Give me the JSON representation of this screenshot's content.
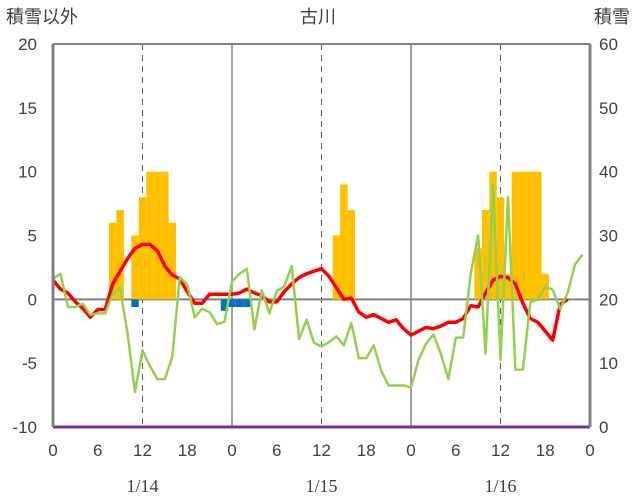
{
  "chart_data": {
    "type": "bar+line",
    "title": "古川",
    "y_left_label": "積雪以外",
    "y_right_label": "積雪",
    "y_left_range": [
      -10,
      20
    ],
    "y_right_range": [
      0,
      60
    ],
    "y_left_ticks": [
      "-10",
      "-5",
      "0",
      "5",
      "10",
      "15",
      "20"
    ],
    "y_right_ticks": [
      "0",
      "10",
      "20",
      "30",
      "40",
      "50",
      "60"
    ],
    "x_hours_range": [
      0,
      72
    ],
    "x_tick_labels": [
      "0",
      "6",
      "12",
      "18",
      "0",
      "6",
      "12",
      "18",
      "0",
      "6",
      "12",
      "18",
      "0"
    ],
    "date_labels": [
      "1/14",
      "1/15",
      "1/16"
    ],
    "colors": {
      "snowfall": "#ffc000",
      "precip": "#0070c0",
      "temperature": "#ff0000",
      "other_line": "#92d050",
      "snow_depth": "#7030a0",
      "axis": "#808080"
    },
    "series": [
      {
        "key": "snowfall_bars",
        "axis": "left",
        "render": "bar",
        "values": [
          [
            8,
            6
          ],
          [
            9,
            7
          ],
          [
            11,
            5
          ],
          [
            12,
            8
          ],
          [
            13,
            10
          ],
          [
            14,
            10
          ],
          [
            15,
            10
          ],
          [
            16,
            6
          ],
          [
            38,
            5
          ],
          [
            39,
            9
          ],
          [
            40,
            7
          ],
          [
            57,
            4
          ],
          [
            58,
            7
          ],
          [
            59,
            10
          ],
          [
            60,
            8
          ],
          [
            61,
            2
          ],
          [
            62,
            10
          ],
          [
            63,
            10
          ],
          [
            64,
            10
          ],
          [
            65,
            10
          ],
          [
            66,
            2
          ]
        ]
      },
      {
        "key": "precip_bars",
        "axis": "left",
        "render": "bar",
        "values": [
          [
            11,
            -0.6
          ],
          [
            23,
            -0.9
          ],
          [
            24,
            -0.6
          ],
          [
            25,
            -0.6
          ],
          [
            26,
            -0.6
          ]
        ]
      },
      {
        "key": "temperature_line",
        "axis": "left",
        "render": "line",
        "values": [
          [
            0,
            1.5
          ],
          [
            1,
            0.8
          ],
          [
            2,
            0.5
          ],
          [
            3,
            -0.2
          ],
          [
            4,
            -0.7
          ],
          [
            5,
            -1.4
          ],
          [
            6,
            -0.8
          ],
          [
            7,
            -0.8
          ],
          [
            8,
            1.2
          ],
          [
            9,
            2.2
          ],
          [
            10,
            3.2
          ],
          [
            11,
            4.0
          ],
          [
            12,
            4.3
          ],
          [
            13,
            4.3
          ],
          [
            14,
            3.8
          ],
          [
            15,
            2.6
          ],
          [
            16,
            1.9
          ],
          [
            17,
            1.6
          ],
          [
            18,
            0.6
          ],
          [
            19,
            -0.3
          ],
          [
            20,
            -0.3
          ],
          [
            21,
            0.4
          ],
          [
            22,
            0.4
          ],
          [
            23,
            0.4
          ],
          [
            24,
            0.4
          ],
          [
            25,
            0.5
          ],
          [
            26,
            0.8
          ],
          [
            27,
            0.5
          ],
          [
            28,
            0.3
          ],
          [
            29,
            -0.2
          ],
          [
            30,
            -0.2
          ],
          [
            31,
            0.6
          ],
          [
            32,
            1.2
          ],
          [
            33,
            1.7
          ],
          [
            34,
            2.0
          ],
          [
            35,
            2.2
          ],
          [
            36,
            2.4
          ],
          [
            37,
            1.8
          ],
          [
            38,
            0.9
          ],
          [
            39,
            0.0
          ],
          [
            40,
            0.1
          ],
          [
            41,
            -1.0
          ],
          [
            42,
            -1.4
          ],
          [
            43,
            -1.2
          ],
          [
            44,
            -1.5
          ],
          [
            45,
            -1.8
          ],
          [
            46,
            -1.6
          ],
          [
            47,
            -2.3
          ],
          [
            48,
            -2.8
          ],
          [
            49,
            -2.5
          ],
          [
            50,
            -2.2
          ],
          [
            51,
            -2.3
          ],
          [
            52,
            -2.1
          ],
          [
            53,
            -1.8
          ],
          [
            54,
            -1.8
          ],
          [
            55,
            -1.5
          ],
          [
            56,
            -0.5
          ],
          [
            57,
            -0.6
          ],
          [
            58,
            0.5
          ],
          [
            59,
            1.5
          ],
          [
            60,
            1.8
          ],
          [
            61,
            1.7
          ],
          [
            62,
            1.2
          ],
          [
            63,
            -0.3
          ],
          [
            64,
            -1.5
          ],
          [
            65,
            -1.8
          ],
          [
            66,
            -2.5
          ],
          [
            67,
            -3.2
          ],
          [
            68,
            -0.4
          ],
          [
            69,
            0.0
          ]
        ]
      },
      {
        "key": "green_line",
        "axis": "right",
        "render": "line",
        "values": [
          [
            0,
            23.2
          ],
          [
            1,
            24.0
          ],
          [
            2,
            18.8
          ],
          [
            3,
            18.8
          ],
          [
            4,
            19.3
          ],
          [
            5,
            17.6
          ],
          [
            6,
            17.8
          ],
          [
            7,
            17.8
          ],
          [
            8,
            20.9
          ],
          [
            9,
            21.7
          ],
          [
            10,
            14.6
          ],
          [
            11,
            5.5
          ],
          [
            12,
            12.0
          ],
          [
            13,
            9.5
          ],
          [
            14,
            7.5
          ],
          [
            15,
            7.5
          ],
          [
            16,
            11.0
          ],
          [
            17,
            23.5
          ],
          [
            18,
            22.3
          ],
          [
            19,
            17.2
          ],
          [
            20,
            18.5
          ],
          [
            21,
            18.0
          ],
          [
            22,
            16.1
          ],
          [
            23,
            16.5
          ],
          [
            24,
            22.8
          ],
          [
            25,
            24.0
          ],
          [
            26,
            24.8
          ],
          [
            27,
            15.3
          ],
          [
            28,
            21.4
          ],
          [
            29,
            17.8
          ],
          [
            30,
            21.3
          ],
          [
            31,
            22.0
          ],
          [
            32,
            25.2
          ],
          [
            33,
            13.8
          ],
          [
            34,
            16.8
          ],
          [
            35,
            13.2
          ],
          [
            36,
            12.6
          ],
          [
            37,
            13.3
          ],
          [
            38,
            14.2
          ],
          [
            39,
            12.8
          ],
          [
            40,
            16.3
          ],
          [
            41,
            10.8
          ],
          [
            42,
            10.8
          ],
          [
            43,
            12.8
          ],
          [
            44,
            8.8
          ],
          [
            45,
            6.5
          ],
          [
            46,
            6.5
          ],
          [
            47,
            6.5
          ],
          [
            48,
            6.2
          ],
          [
            49,
            10.5
          ],
          [
            50,
            13.0
          ],
          [
            51,
            14.5
          ],
          [
            52,
            11.5
          ],
          [
            53,
            7.5
          ],
          [
            54,
            14.0
          ],
          [
            55,
            14.0
          ],
          [
            56,
            24.0
          ],
          [
            57,
            30.0
          ],
          [
            58,
            11.5
          ],
          [
            59,
            38.0
          ],
          [
            60,
            10.5
          ],
          [
            61,
            36.0
          ],
          [
            62,
            9.0
          ],
          [
            63,
            9.0
          ],
          [
            64,
            19.5
          ],
          [
            65,
            20.0
          ],
          [
            66,
            22.0
          ],
          [
            67,
            21.5
          ],
          [
            68,
            18.5
          ],
          [
            69,
            21.0
          ],
          [
            70,
            25.5
          ],
          [
            71,
            27.0
          ]
        ]
      },
      {
        "key": "snow_depth_line",
        "axis": "right",
        "render": "line",
        "values": [
          [
            0,
            0
          ],
          [
            72,
            0
          ]
        ]
      }
    ]
  }
}
